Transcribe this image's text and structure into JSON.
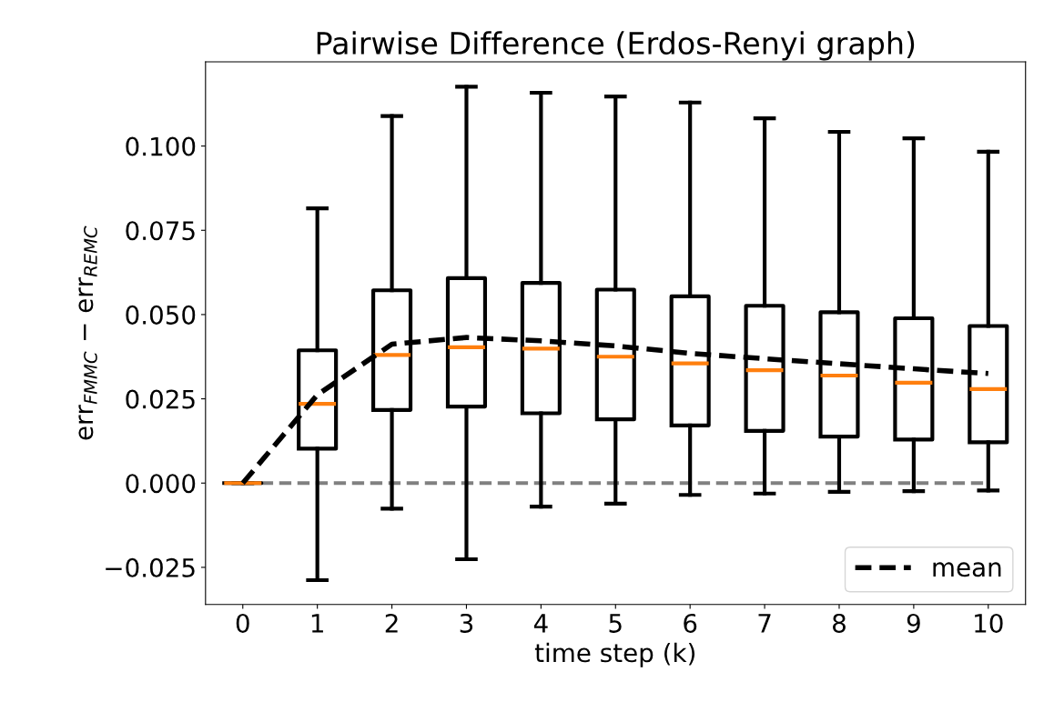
{
  "chart_data": {
    "type": "box",
    "title": "Pairwise Difference (Erdos-Renyi graph)",
    "xlabel": "time step (k)",
    "ylabel": "err$_{FMMC}$ − err$_{REMC}$",
    "categories": [
      "0",
      "1",
      "2",
      "3",
      "4",
      "5",
      "6",
      "7",
      "8",
      "9",
      "10"
    ],
    "series": [
      {
        "color": "#000000",
        "boxes": [
          {
            "low": 0,
            "q1": 0,
            "median": 0,
            "q3": 0,
            "high": 0
          },
          {
            "low": -0.0288,
            "q1": 0.0102,
            "median": 0.0235,
            "q3": 0.0394,
            "high": 0.0815
          },
          {
            "low": -0.0076,
            "q1": 0.0217,
            "median": 0.038,
            "q3": 0.0572,
            "high": 0.1089
          },
          {
            "low": -0.0226,
            "q1": 0.0227,
            "median": 0.0403,
            "q3": 0.0608,
            "high": 0.1176
          },
          {
            "low": -0.007,
            "q1": 0.0207,
            "median": 0.0399,
            "q3": 0.0594,
            "high": 0.1158
          },
          {
            "low": -0.0061,
            "q1": 0.0189,
            "median": 0.0375,
            "q3": 0.0574,
            "high": 0.1147
          },
          {
            "low": -0.0035,
            "q1": 0.0171,
            "median": 0.0355,
            "q3": 0.0554,
            "high": 0.1129
          },
          {
            "low": -0.0031,
            "q1": 0.0155,
            "median": 0.0335,
            "q3": 0.0526,
            "high": 0.1082
          },
          {
            "low": -0.0026,
            "q1": 0.0138,
            "median": 0.0319,
            "q3": 0.0507,
            "high": 0.1042
          },
          {
            "low": -0.0024,
            "q1": 0.0129,
            "median": 0.0298,
            "q3": 0.0489,
            "high": 0.1023
          },
          {
            "low": -0.0022,
            "q1": 0.0121,
            "median": 0.0279,
            "q3": 0.0466,
            "high": 0.0983
          }
        ]
      },
      {
        "type": "line",
        "name": "mean",
        "color": "#000000",
        "line_style": "dashed",
        "values": [
          0,
          0.0262,
          0.0412,
          0.0432,
          0.0422,
          0.0407,
          0.0385,
          0.0369,
          0.0354,
          0.0339,
          0.0325
        ]
      }
    ],
    "ref_lines": [
      {
        "axis": "y",
        "value": 0,
        "color": "#808080",
        "line_style": "dashed"
      }
    ],
    "ylim": [
      -0.036,
      0.125
    ],
    "yticks": [
      {
        "value": -0.025,
        "label": "−0.025"
      },
      {
        "value": 0,
        "label": "0.000"
      },
      {
        "value": 0.025,
        "label": "0.025"
      },
      {
        "value": 0.05,
        "label": "0.050"
      },
      {
        "value": 0.075,
        "label": "0.075"
      },
      {
        "value": 0.1,
        "label": "0.100"
      }
    ],
    "grid": false,
    "legend": "lower right"
  }
}
